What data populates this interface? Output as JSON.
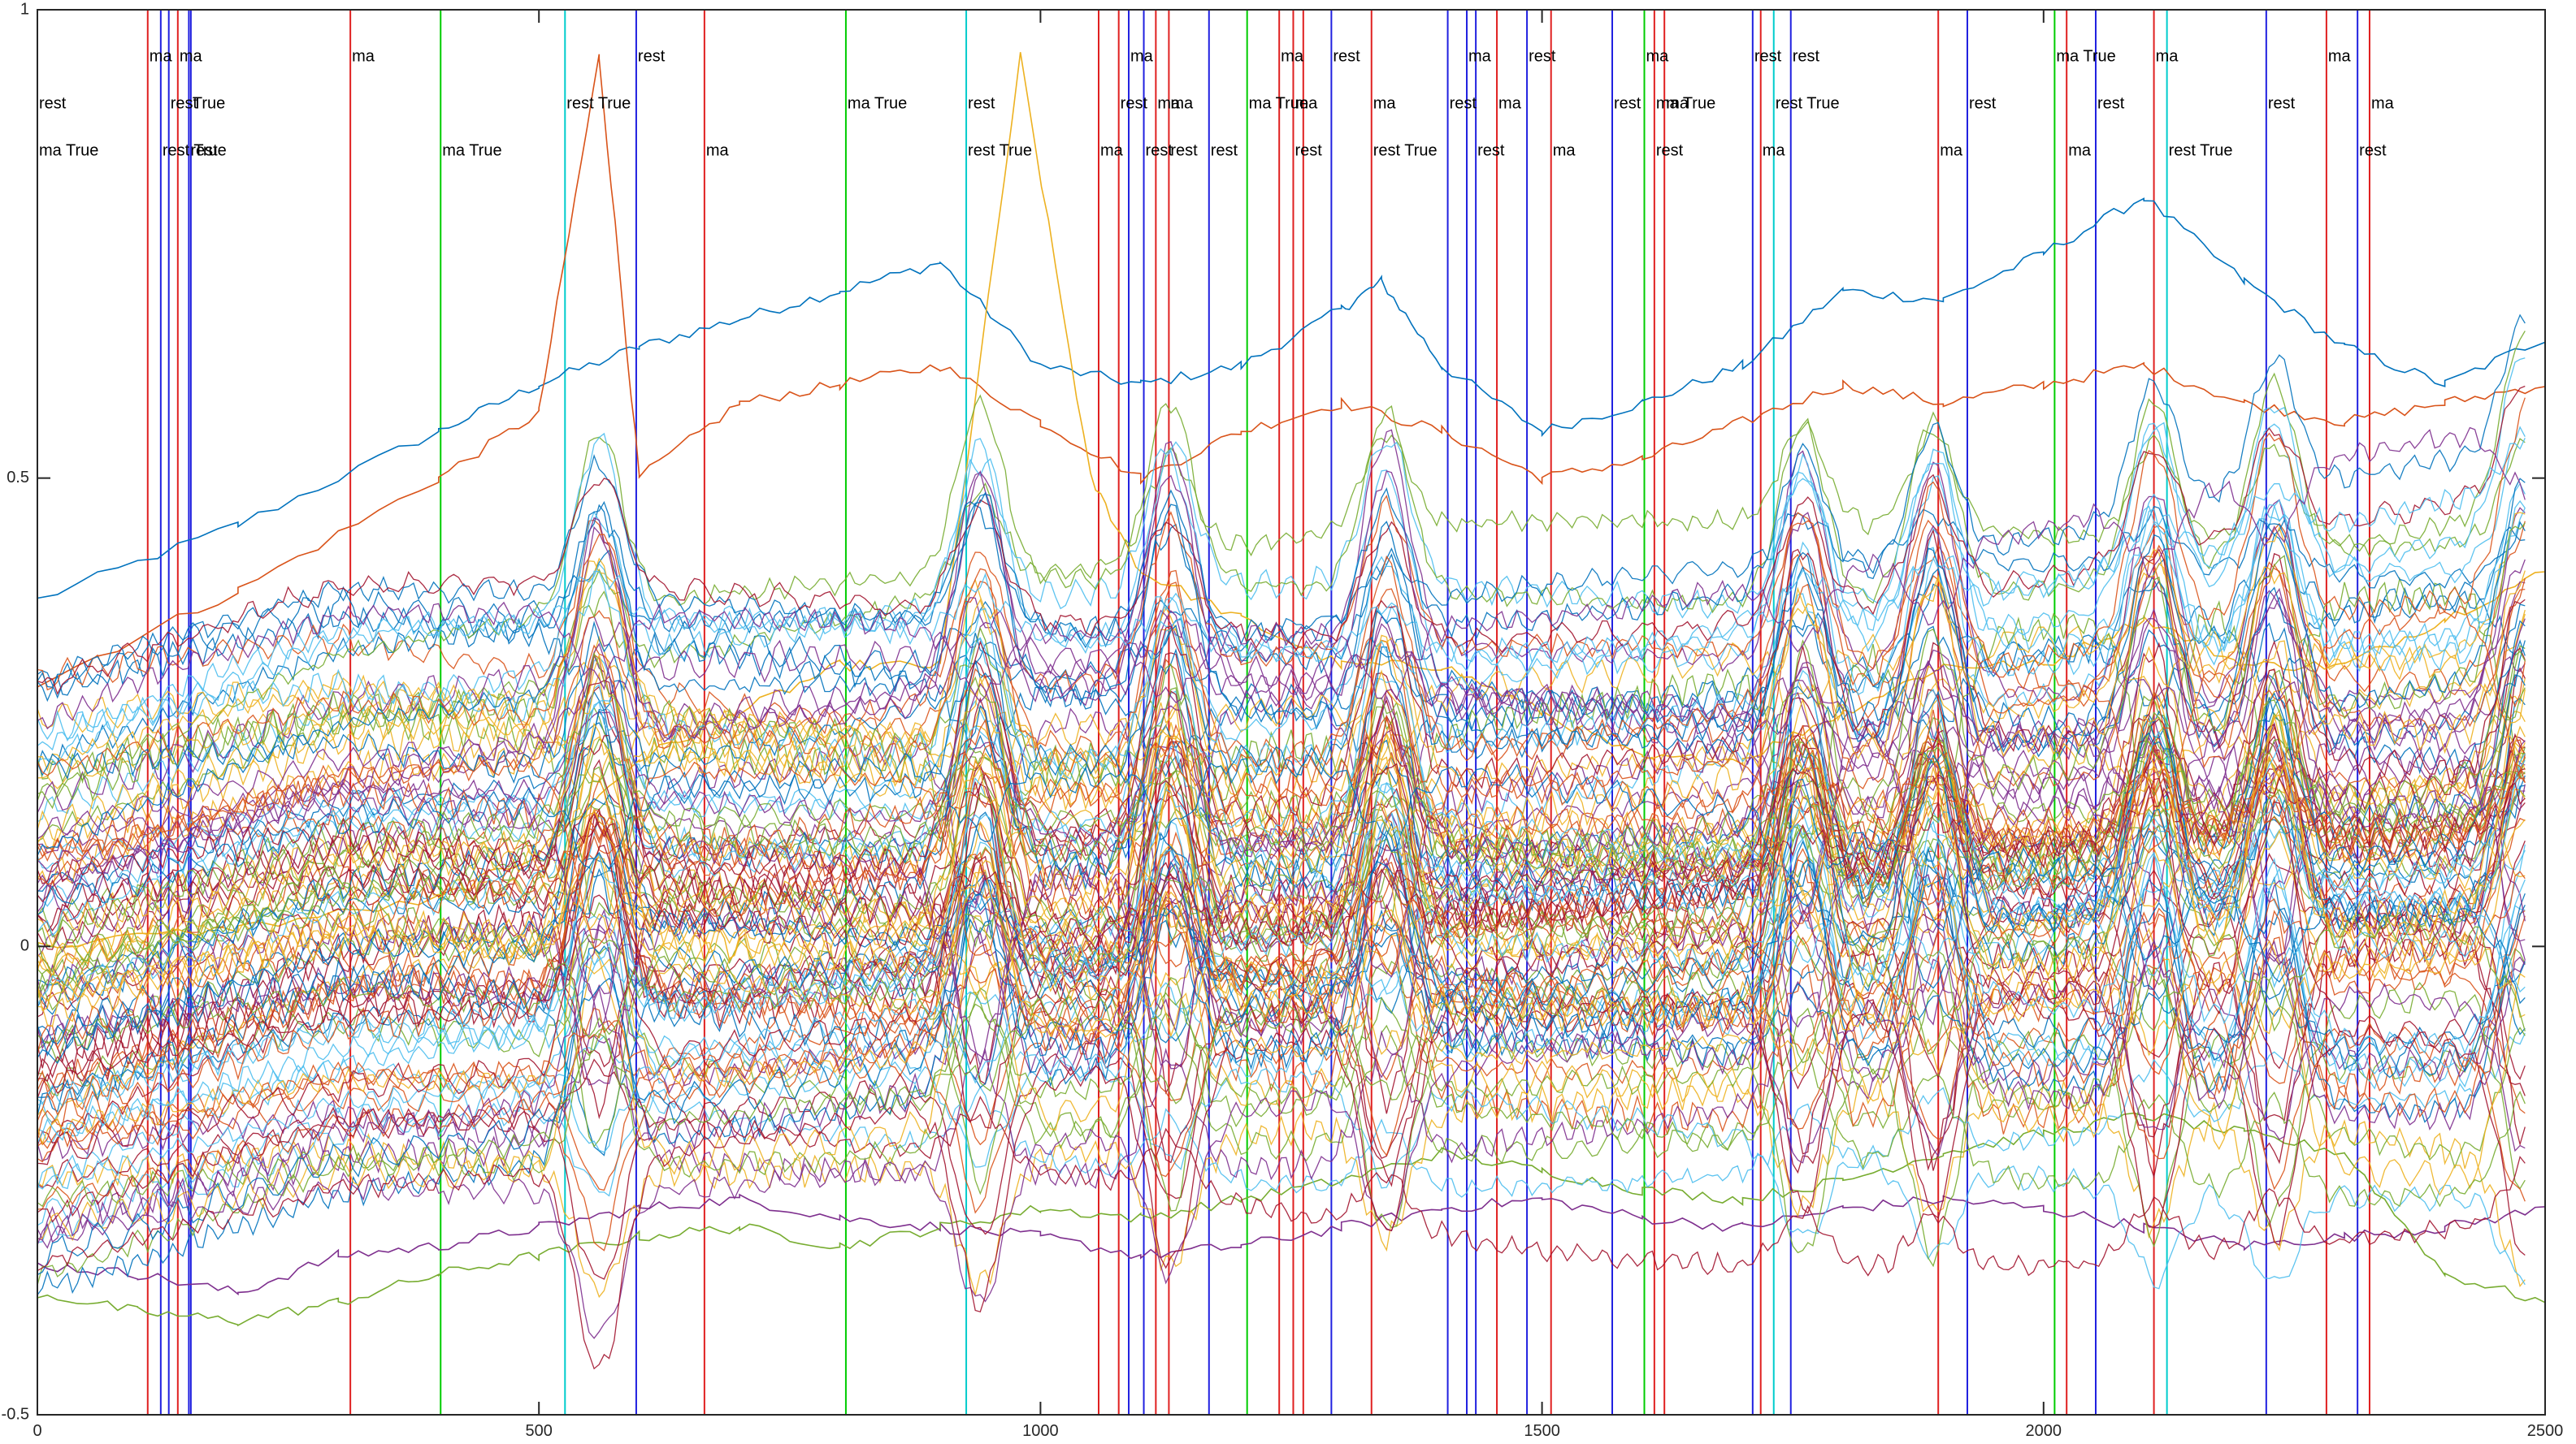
{
  "chart_data": {
    "type": "line",
    "title": "",
    "xlabel": "",
    "ylabel": "",
    "xlim": [
      0,
      2500
    ],
    "ylim": [
      -0.5,
      1
    ],
    "x_ticks": [
      0,
      500,
      1000,
      1500,
      2000,
      2500
    ],
    "x_tick_labels": [
      "0",
      "500",
      "1000",
      "1500",
      "2000",
      "2500"
    ],
    "y_ticks": [
      -0.5,
      0,
      0.5,
      1
    ],
    "y_tick_labels": [
      "-0.5",
      "0",
      "0.5",
      "1"
    ],
    "grid": false,
    "legend": "none",
    "events": [
      {
        "x": 0,
        "color": "#00cc00",
        "labels": [
          "rest",
          "ma True"
        ]
      },
      {
        "x": 110,
        "color": "#e02020",
        "labels": [
          "ma"
        ]
      },
      {
        "x": 123,
        "color": "#2020e0",
        "labels": [
          "rest True"
        ]
      },
      {
        "x": 131,
        "color": "#2020e0",
        "labels": [
          "rest"
        ]
      },
      {
        "x": 140,
        "color": "#e02020",
        "labels": [
          "ma"
        ]
      },
      {
        "x": 151,
        "color": "#2020e0",
        "labels": [
          "rest"
        ]
      },
      {
        "x": 153,
        "color": "#2020e0",
        "labels": [
          "True"
        ]
      },
      {
        "x": 312,
        "color": "#e02020",
        "labels": [
          "ma"
        ]
      },
      {
        "x": 402,
        "color": "#00cc00",
        "labels": [
          "ma True"
        ]
      },
      {
        "x": 526,
        "color": "#00cccc",
        "labels": [
          "rest True"
        ]
      },
      {
        "x": 597,
        "color": "#2020e0",
        "labels": [
          "rest"
        ]
      },
      {
        "x": 665,
        "color": "#e02020",
        "labels": [
          "ma"
        ]
      },
      {
        "x": 806,
        "color": "#00cc00",
        "labels": [
          "ma True"
        ]
      },
      {
        "x": 926,
        "color": "#00cccc",
        "labels": [
          "rest",
          "rest True"
        ]
      },
      {
        "x": 1058,
        "color": "#e02020",
        "labels": [
          "ma"
        ]
      },
      {
        "x": 1078,
        "color": "#e02020",
        "labels": [
          "rest"
        ]
      },
      {
        "x": 1088,
        "color": "#2020e0",
        "labels": [
          "ma"
        ]
      },
      {
        "x": 1103,
        "color": "#2020e0",
        "labels": [
          "rest"
        ]
      },
      {
        "x": 1115,
        "color": "#e02020",
        "labels": [
          "ma"
        ]
      },
      {
        "x": 1128,
        "color": "#e02020",
        "labels": [
          "ma",
          "rest"
        ]
      },
      {
        "x": 1168,
        "color": "#2020e0",
        "labels": [
          "rest"
        ]
      },
      {
        "x": 1206,
        "color": "#00cc00",
        "labels": [
          "ma True"
        ]
      },
      {
        "x": 1238,
        "color": "#e02020",
        "labels": [
          "ma"
        ]
      },
      {
        "x": 1252,
        "color": "#e02020",
        "labels": [
          "ma",
          "rest"
        ]
      },
      {
        "x": 1262,
        "color": "#e02020",
        "labels": []
      },
      {
        "x": 1290,
        "color": "#2020e0",
        "labels": [
          "rest"
        ]
      },
      {
        "x": 1330,
        "color": "#e02020",
        "labels": [
          "ma",
          "rest True"
        ]
      },
      {
        "x": 1406,
        "color": "#2020e0",
        "labels": [
          "rest"
        ]
      },
      {
        "x": 1425,
        "color": "#2020e0",
        "labels": [
          "ma"
        ]
      },
      {
        "x": 1434,
        "color": "#2020e0",
        "labels": [
          "rest"
        ]
      },
      {
        "x": 1455,
        "color": "#e02020",
        "labels": [
          "ma"
        ]
      },
      {
        "x": 1485,
        "color": "#2020e0",
        "labels": [
          "rest"
        ]
      },
      {
        "x": 1509,
        "color": "#e02020",
        "labels": [
          "ma"
        ]
      },
      {
        "x": 1570,
        "color": "#2020e0",
        "labels": [
          "rest"
        ]
      },
      {
        "x": 1602,
        "color": "#00cc00",
        "labels": [
          "ma"
        ]
      },
      {
        "x": 1612,
        "color": "#e02020",
        "labels": [
          "ma True",
          "rest"
        ]
      },
      {
        "x": 1622,
        "color": "#e02020",
        "labels": [
          "ma"
        ]
      },
      {
        "x": 1710,
        "color": "#2020e0",
        "labels": [
          "rest"
        ]
      },
      {
        "x": 1718,
        "color": "#e02020",
        "labels": [
          "ma"
        ]
      },
      {
        "x": 1731,
        "color": "#00cccc",
        "labels": [
          "rest True"
        ]
      },
      {
        "x": 1748,
        "color": "#2020e0",
        "labels": [
          "rest"
        ]
      },
      {
        "x": 1895,
        "color": "#e02020",
        "labels": [
          "ma"
        ]
      },
      {
        "x": 1924,
        "color": "#2020e0",
        "labels": [
          "rest"
        ]
      },
      {
        "x": 2011,
        "color": "#00cc00",
        "labels": [
          "ma True"
        ]
      },
      {
        "x": 2023,
        "color": "#e02020",
        "labels": [
          "ma"
        ]
      },
      {
        "x": 2052,
        "color": "#2020e0",
        "labels": [
          "rest"
        ]
      },
      {
        "x": 2110,
        "color": "#e02020",
        "labels": [
          "ma"
        ]
      },
      {
        "x": 2123,
        "color": "#00cccc",
        "labels": [
          "rest True"
        ]
      },
      {
        "x": 2222,
        "color": "#2020e0",
        "labels": [
          "rest"
        ]
      },
      {
        "x": 2282,
        "color": "#e02020",
        "labels": [
          "ma"
        ]
      },
      {
        "x": 2313,
        "color": "#2020e0",
        "labels": [
          "rest"
        ]
      },
      {
        "x": 2325,
        "color": "#e02020",
        "labels": [
          "ma"
        ]
      }
    ],
    "series_count": 120,
    "series_colors": [
      "#0072BD",
      "#D95319",
      "#EDB120",
      "#7E2F8E",
      "#77AC30",
      "#4DBEEE",
      "#A2142F"
    ],
    "highlight_series": [
      {
        "x": [
          0,
          200,
          400,
          500,
          600,
          700,
          800,
          900,
          1000,
          1100,
          1200,
          1300,
          1340,
          1400,
          1500,
          1600,
          1700,
          1800,
          1900,
          2000,
          2100,
          2200,
          2300,
          2400,
          2500
        ],
        "values": [
          0.37,
          0.45,
          0.55,
          0.6,
          0.64,
          0.67,
          0.7,
          0.73,
          0.62,
          0.6,
          0.62,
          0.68,
          0.71,
          0.62,
          0.55,
          0.58,
          0.62,
          0.7,
          0.69,
          0.74,
          0.8,
          0.71,
          0.64,
          0.6,
          0.65
        ]
      },
      {
        "x": [
          0,
          200,
          400,
          500,
          560,
          600,
          700,
          800,
          900,
          1000,
          1100,
          1200,
          1300,
          1400,
          1500,
          1600,
          1700,
          1800,
          1900,
          2000,
          2100,
          2200,
          2300,
          2400,
          2500
        ],
        "values": [
          0.28,
          0.38,
          0.5,
          0.57,
          0.95,
          0.5,
          0.58,
          0.6,
          0.62,
          0.56,
          0.5,
          0.55,
          0.58,
          0.55,
          0.5,
          0.52,
          0.56,
          0.6,
          0.58,
          0.6,
          0.62,
          0.58,
          0.56,
          0.58,
          0.6
        ]
      },
      {
        "x": [
          0,
          200,
          400,
          500,
          600,
          700,
          800,
          900,
          980,
          1050,
          1100,
          1200,
          1300,
          1400,
          1500,
          1600,
          1700,
          1800,
          1900,
          2000,
          2100,
          2200,
          2300,
          2400,
          2500
        ],
        "values": [
          0.0,
          0.02,
          0.05,
          0.1,
          0.2,
          0.25,
          0.3,
          0.3,
          0.95,
          0.5,
          0.4,
          0.35,
          0.3,
          0.3,
          0.25,
          0.2,
          0.2,
          0.25,
          0.3,
          0.3,
          0.35,
          0.3,
          0.3,
          0.35,
          0.4
        ]
      },
      {
        "x": [
          0,
          100,
          200,
          300,
          400,
          500,
          600,
          700,
          800,
          900,
          1000,
          1100,
          1200,
          1300,
          1400,
          1500,
          1600,
          1700,
          1800,
          1900,
          2000,
          2100,
          2200,
          2300,
          2400,
          2500
        ],
        "values": [
          -0.34,
          -0.35,
          -0.37,
          -0.33,
          -0.32,
          -0.3,
          -0.28,
          -0.27,
          -0.29,
          -0.3,
          -0.31,
          -0.33,
          -0.32,
          -0.3,
          -0.28,
          -0.27,
          -0.29,
          -0.3,
          -0.28,
          -0.27,
          -0.28,
          -0.3,
          -0.32,
          -0.31,
          -0.3,
          -0.28
        ]
      },
      {
        "x": [
          0,
          100,
          200,
          300,
          400,
          500,
          600,
          700,
          800,
          900,
          1000,
          1100,
          1200,
          1300,
          1400,
          1500,
          1600,
          1700,
          1800,
          1900,
          2000,
          2100,
          2200,
          2300,
          2400,
          2500
        ],
        "values": [
          -0.37,
          -0.39,
          -0.4,
          -0.38,
          -0.35,
          -0.33,
          -0.31,
          -0.3,
          -0.32,
          -0.3,
          -0.28,
          -0.29,
          -0.27,
          -0.25,
          -0.22,
          -0.24,
          -0.26,
          -0.27,
          -0.25,
          -0.22,
          -0.2,
          -0.18,
          -0.2,
          -0.22,
          -0.35,
          -0.38
        ]
      }
    ]
  }
}
